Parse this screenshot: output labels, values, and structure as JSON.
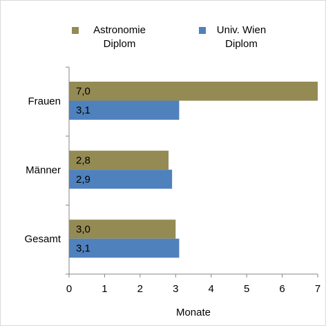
{
  "chart_data": {
    "type": "bar",
    "orientation": "horizontal",
    "categories": [
      "Frauen",
      "Männer",
      "Gesamt"
    ],
    "series": [
      {
        "name": "Astronomie Diplom",
        "color": "#948A54",
        "values": [
          7.0,
          2.8,
          3.0
        ],
        "value_labels": [
          "7,0",
          "2,8",
          "3,0"
        ]
      },
      {
        "name": "Univ. Wien Diplom",
        "color": "#4F81BD",
        "values": [
          3.1,
          2.9,
          3.1
        ],
        "value_labels": [
          "3,1",
          "2,9",
          "3,1"
        ]
      }
    ],
    "x_label": "Monate",
    "xlim": [
      0,
      7
    ],
    "xticks": [
      0,
      1,
      2,
      3,
      4,
      5,
      6,
      7
    ],
    "legend": "top",
    "grid": false
  }
}
